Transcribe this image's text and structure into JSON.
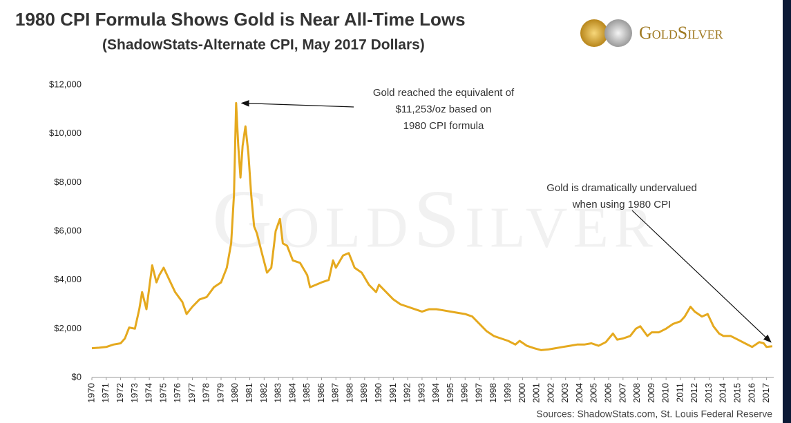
{
  "chart_data": {
    "type": "line",
    "title": "1980 CPI Formula Shows Gold is Near All-Time Lows",
    "subtitle": "(ShadowStats-Alternate CPI, May 2017 Dollars)",
    "logo": "GoldSilver",
    "source": "Sources: ShadowStats.com, St. Louis Federal Reserve",
    "annotations": [
      {
        "lines": [
          "Gold reached the equivalent of",
          "$11,253/oz based on",
          "1980 CPI formula"
        ],
        "x": 1980.05,
        "y": 11253
      },
      {
        "lines": [
          "Gold is dramatically undervalued",
          "when using 1980 CPI"
        ],
        "x": 2017.4,
        "y": 1280
      }
    ],
    "x": [
      1970.0,
      1970.5,
      1971,
      1971.5,
      1972,
      1972.3,
      1972.6,
      1973,
      1973.3,
      1973.5,
      1973.8,
      1974.2,
      1974.5,
      1974.7,
      1975,
      1975.4,
      1975.8,
      1976.3,
      1976.6,
      1977,
      1977.5,
      1978,
      1978.5,
      1979,
      1979.4,
      1979.7,
      1979.9,
      1980.05,
      1980.2,
      1980.35,
      1980.5,
      1980.7,
      1980.9,
      1981.1,
      1981.3,
      1981.5,
      1981.8,
      1982.2,
      1982.5,
      1982.8,
      1983.1,
      1983.3,
      1983.6,
      1984,
      1984.5,
      1985,
      1985.2,
      1985.6,
      1986,
      1986.5,
      1986.8,
      1987,
      1987.5,
      1987.9,
      1988.3,
      1988.8,
      1989.3,
      1989.8,
      1990,
      1990.5,
      1991,
      1991.5,
      1992,
      1992.5,
      1993,
      1993.5,
      1994,
      1994.5,
      1995,
      1995.5,
      1996,
      1996.5,
      1997,
      1997.5,
      1998,
      1998.5,
      1999,
      1999.5,
      1999.8,
      2000.3,
      2000.8,
      2001.3,
      2001.8,
      2002.3,
      2002.8,
      2003.3,
      2003.8,
      2004.3,
      2004.8,
      2005.3,
      2005.8,
      2006.3,
      2006.6,
      2007,
      2007.5,
      2007.9,
      2008.2,
      2008.7,
      2009,
      2009.5,
      2010,
      2010.5,
      2011,
      2011.3,
      2011.7,
      2012,
      2012.5,
      2012.9,
      2013.3,
      2013.7,
      2014,
      2014.5,
      2015,
      2015.5,
      2016,
      2016.5,
      2016.8,
      2017,
      2017.4
    ],
    "series": [
      {
        "name": "Gold",
        "color": "#e5a91e",
        "values": [
          1200,
          1220,
          1250,
          1350,
          1400,
          1600,
          2050,
          2000,
          2800,
          3500,
          2800,
          4600,
          3900,
          4200,
          4500,
          4000,
          3500,
          3100,
          2600,
          2900,
          3200,
          3300,
          3700,
          3900,
          4500,
          5500,
          7500,
          11253,
          9500,
          8200,
          9500,
          10300,
          9200,
          7500,
          6200,
          5900,
          5200,
          4300,
          4500,
          6000,
          6500,
          5500,
          5400,
          4800,
          4700,
          4200,
          3700,
          3800,
          3900,
          4000,
          4800,
          4500,
          5000,
          5100,
          4500,
          4300,
          3800,
          3500,
          3800,
          3500,
          3200,
          3000,
          2900,
          2800,
          2700,
          2800,
          2800,
          2750,
          2700,
          2650,
          2600,
          2500,
          2200,
          1900,
          1700,
          1600,
          1500,
          1350,
          1500,
          1300,
          1200,
          1120,
          1150,
          1200,
          1250,
          1300,
          1350,
          1350,
          1400,
          1300,
          1450,
          1800,
          1550,
          1600,
          1700,
          2000,
          2100,
          1700,
          1850,
          1850,
          2000,
          2200,
          2300,
          2500,
          2900,
          2700,
          2500,
          2600,
          2100,
          1800,
          1700,
          1700,
          1550,
          1400,
          1250,
          1450,
          1400,
          1250,
          1280
        ]
      }
    ],
    "xlim": [
      1970,
      2017.5
    ],
    "xticks": [
      1970,
      1971,
      1972,
      1973,
      1974,
      1975,
      1976,
      1977,
      1978,
      1979,
      1980,
      1981,
      1982,
      1983,
      1984,
      1985,
      1986,
      1987,
      1988,
      1989,
      1990,
      1991,
      1992,
      1993,
      1994,
      1995,
      1996,
      1997,
      1998,
      1999,
      2000,
      2001,
      2002,
      2003,
      2004,
      2005,
      2006,
      2007,
      2008,
      2009,
      2010,
      2011,
      2012,
      2013,
      2014,
      2015,
      2016,
      2017
    ],
    "ylim": [
      0,
      12000
    ],
    "yticks": [
      {
        "value": 0,
        "label": "$0"
      },
      {
        "value": 2000,
        "label": "$2,000"
      },
      {
        "value": 4000,
        "label": "$4,000"
      },
      {
        "value": 6000,
        "label": "$6,000"
      },
      {
        "value": 8000,
        "label": "$8,000"
      },
      {
        "value": 10000,
        "label": "$10,000"
      },
      {
        "value": 12000,
        "label": "$12,000"
      }
    ],
    "grid": false
  }
}
